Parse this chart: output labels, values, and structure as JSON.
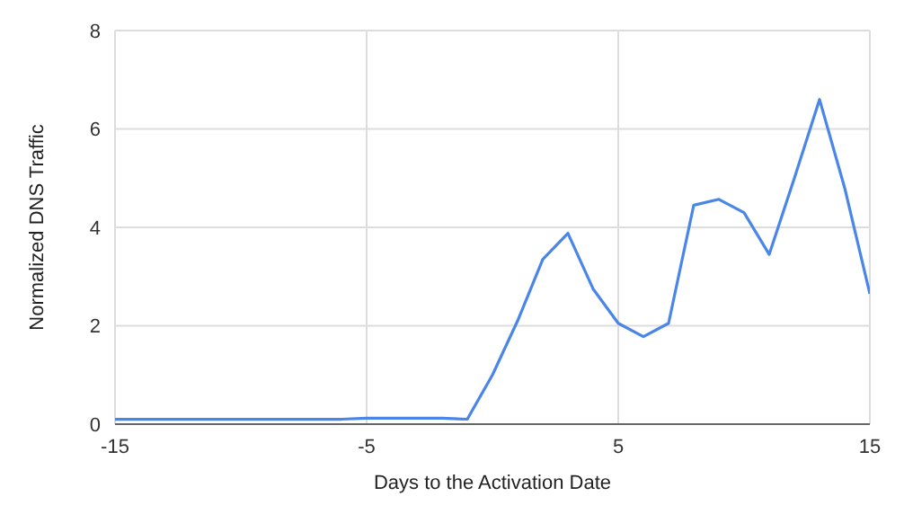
{
  "chart_data": {
    "type": "line",
    "xlabel": "Days to the Activation Date",
    "ylabel": "Normalized DNS Traffic",
    "x": [
      -15,
      -14,
      -13,
      -12,
      -11,
      -10,
      -9,
      -8,
      -7,
      -6,
      -5,
      -4,
      -3,
      -2,
      -1,
      0,
      1,
      2,
      3,
      4,
      5,
      6,
      7,
      8,
      9,
      10,
      11,
      12,
      13,
      14,
      15
    ],
    "series": [
      {
        "color": "#4a86e8",
        "values": [
          0.1,
          0.1,
          0.1,
          0.1,
          0.1,
          0.1,
          0.1,
          0.1,
          0.1,
          0.1,
          0.12,
          0.12,
          0.12,
          0.12,
          0.1,
          1.0,
          2.1,
          3.35,
          3.88,
          2.75,
          2.05,
          1.78,
          2.05,
          4.45,
          4.57,
          4.3,
          3.45,
          5.0,
          6.6,
          4.8,
          2.65
        ]
      }
    ],
    "xlim": [
      -15,
      15
    ],
    "xticks": [
      -15,
      -5,
      5,
      15
    ],
    "ylim": [
      0,
      8
    ],
    "yticks": [
      0,
      2,
      4,
      6,
      8
    ],
    "grid": true,
    "legend": false,
    "marker": "none",
    "line_style": "solid"
  }
}
